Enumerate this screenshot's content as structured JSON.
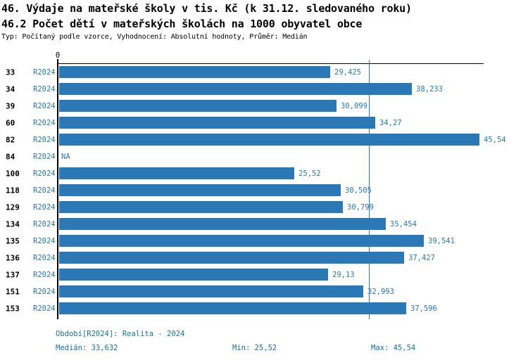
{
  "header": {
    "title_line1": "46. Výdaje na mateřské školy v tis. Kč (k 31.12. sledovaného roku)",
    "title_line2": "46.2 Počet dětí v mateřských školách na 1000 obyvatel obce",
    "subtitle": "Typ: Počítaný podle vzorce, Vyhodnocení: Absolutní hodnoty, Průměr: Medián"
  },
  "chart_data": {
    "type": "bar",
    "orientation": "horizontal",
    "title": "46. Výdaje na mateřské školy v tis. Kč (k 31.12. sledovaného roku) / 46.2 Počet dětí v mateřských školách na 1000 obyvatel obce",
    "categories": [
      "33",
      "34",
      "39",
      "60",
      "82",
      "84",
      "100",
      "118",
      "129",
      "134",
      "135",
      "136",
      "137",
      "151",
      "153"
    ],
    "series": [
      {
        "name": "R2024",
        "values": [
          29.425,
          38.233,
          30.099,
          34.27,
          45.54,
          null,
          25.52,
          30.505,
          30.799,
          35.454,
          39.541,
          37.427,
          29.13,
          32.993,
          37.596
        ]
      }
    ],
    "labels": [
      "29,425",
      "38,233",
      "30,099",
      "34,27",
      "45,54",
      "NA",
      "25,52",
      "30,505",
      "30,799",
      "35,454",
      "39,541",
      "37,427",
      "29,13",
      "32,993",
      "37,596"
    ],
    "na_label": "NA",
    "x_ticks": [
      {
        "value": 0,
        "label": "0"
      }
    ],
    "xlim": [
      0,
      46
    ],
    "grid": false,
    "legend": false,
    "median_value": 33.632,
    "median_label": "33,632",
    "min_value": 25.52,
    "max_value": 45.54
  },
  "footer": {
    "period": "Období[R2024]: Realita - 2024",
    "median": "Medián: 33,632",
    "min": "Min: 25,52",
    "max": "Max: 45,54"
  },
  "colors": {
    "bar": "#2a78b6",
    "label_text": "#2a78b6",
    "footer_text": "#17739c",
    "median_line": "#2a78b6",
    "axis": "#000000"
  }
}
